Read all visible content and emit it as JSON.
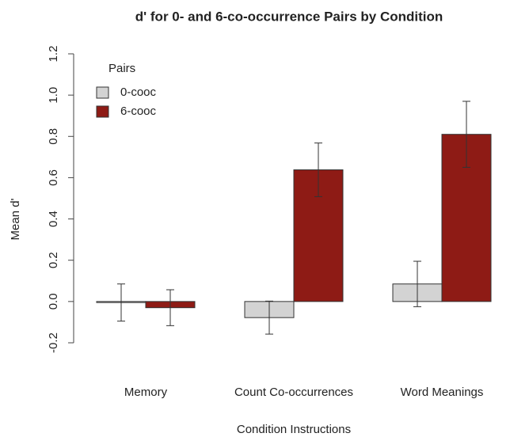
{
  "chart_data": {
    "type": "bar",
    "title": "d' for 0- and 6-co-occurrence Pairs by Condition",
    "xlabel": "Condition Instructions",
    "ylabel": "Mean d'",
    "categories": [
      "Memory",
      "Count Co-occurrences",
      "Word Meanings"
    ],
    "series": [
      {
        "name": "0-cooc",
        "color": "#d3d3d3",
        "values": [
          -0.005,
          -0.078,
          0.085
        ],
        "errors": [
          0.09,
          0.08,
          0.11
        ]
      },
      {
        "name": "6-cooc",
        "color": "#8e1b15",
        "values": [
          -0.03,
          0.638,
          0.81
        ],
        "errors": [
          0.087,
          0.13,
          0.16
        ]
      }
    ],
    "legend_title": "Pairs",
    "legend": "top-left",
    "ylim": [
      -0.2,
      1.2
    ],
    "yticks": [
      -0.2,
      {
        "value": 0,
        "label": "0.0"
      },
      0.2,
      0.4,
      0.6,
      0.8,
      {
        "value": 1,
        "label": "1.0"
      },
      1.2
    ]
  }
}
